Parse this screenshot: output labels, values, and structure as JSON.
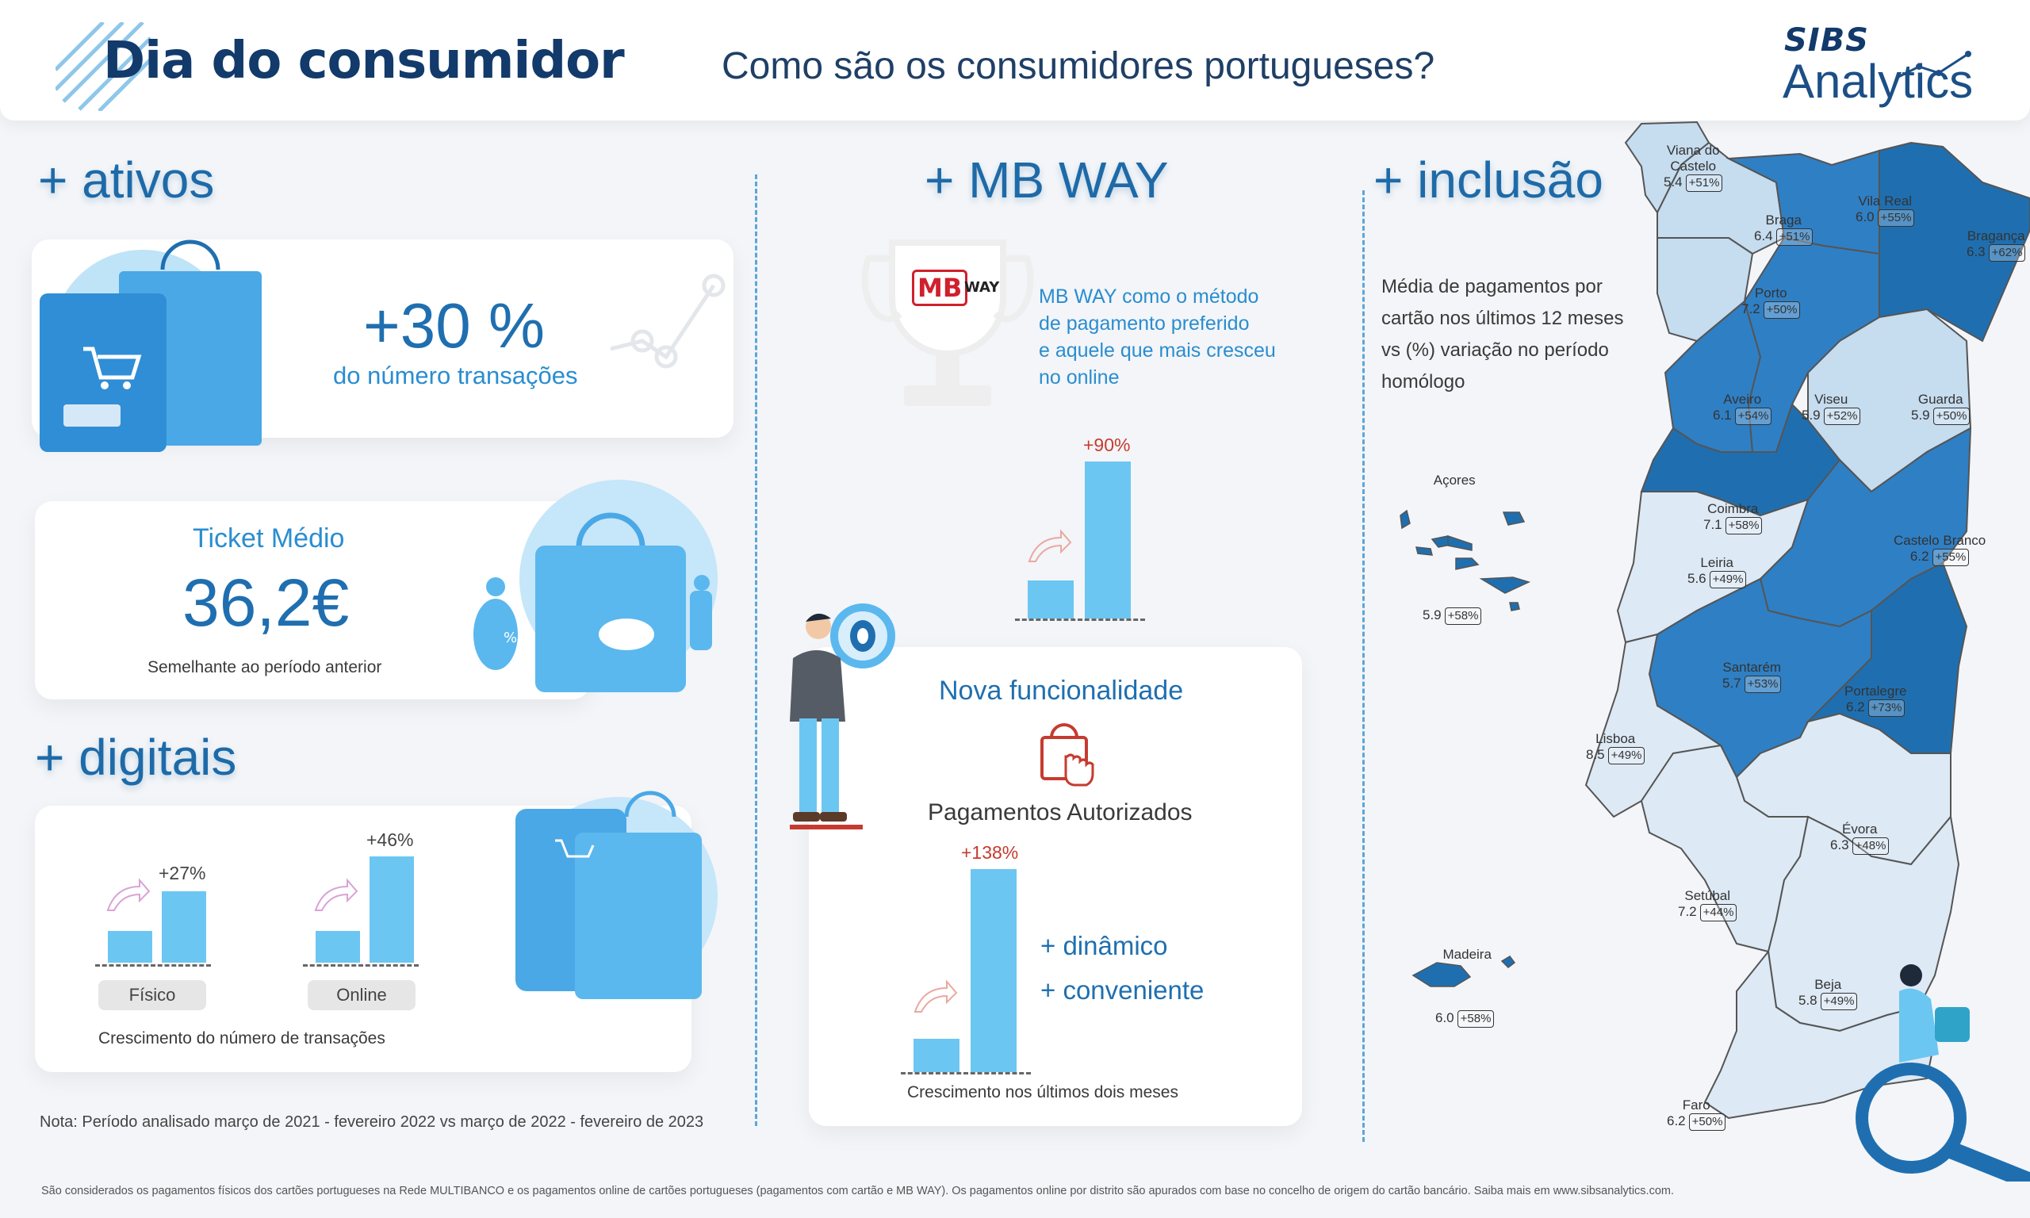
{
  "header": {
    "title": "Dia do consumidor",
    "subtitle": "Como são os consumidores portugueses?",
    "logo_brand": "SIBS",
    "logo_product": "Analytics"
  },
  "sections": {
    "ativos": "+ ativos",
    "mbway": "+ MB WAY",
    "inclusao": "+ inclusão",
    "digitais": "+ digitais"
  },
  "ativos": {
    "value": "+30 %",
    "caption": "do número transações"
  },
  "ticket": {
    "label": "Ticket Médio",
    "value": "36,2€",
    "note": "Semelhante ao período anterior"
  },
  "digitais": {
    "fisico": {
      "label": "Físico",
      "growth": "+27%",
      "growth_value": 27
    },
    "online": {
      "label": "Online",
      "growth": "+46%",
      "growth_value": 46
    },
    "caption": "Crescimento do número de transações"
  },
  "mbway": {
    "logo_mb": "MB",
    "logo_way": "WAY",
    "line1": "MB WAY como o método",
    "line2": "de pagamento preferido",
    "line3": "e aquele que mais cresceu",
    "line4": "no online",
    "growth": "+90%",
    "growth_value": 90
  },
  "nova": {
    "title": "Nova funcionalidade",
    "subtitle": "Pagamentos Autorizados",
    "growth": "+138%",
    "growth_value": 138,
    "bullet1": "+ dinâmico",
    "bullet2": "+ conveniente",
    "caption": "Crescimento nos últimos dois meses"
  },
  "inclusao": {
    "line1": "Média de pagamentos por",
    "line2": "cartão nos últimos 12 meses",
    "line3": "vs (%) variação no período",
    "line4": "homólogo"
  },
  "map": {
    "districts": [
      {
        "name": "Viana do\nCastelo",
        "value": "5.4",
        "change": "+51%"
      },
      {
        "name": "Braga",
        "value": "6.4",
        "change": "+51%"
      },
      {
        "name": "Vila Real",
        "value": "6.0",
        "change": "+55%"
      },
      {
        "name": "Bragança",
        "value": "6.3",
        "change": "+62%"
      },
      {
        "name": "Porto",
        "value": "7.2",
        "change": "+50%"
      },
      {
        "name": "Aveiro",
        "value": "6.1",
        "change": "+54%"
      },
      {
        "name": "Viseu",
        "value": "5.9",
        "change": "+52%"
      },
      {
        "name": "Guarda",
        "value": "5.9",
        "change": "+50%"
      },
      {
        "name": "Coimbra",
        "value": "7.1",
        "change": "+58%"
      },
      {
        "name": "Castelo Branco",
        "value": "6.2",
        "change": "+55%"
      },
      {
        "name": "Leiria",
        "value": "5.6",
        "change": "+49%"
      },
      {
        "name": "Santarém",
        "value": "5.7",
        "change": "+53%"
      },
      {
        "name": "Portalegre",
        "value": "6.2",
        "change": "+73%"
      },
      {
        "name": "Lisboa",
        "value": "8.5",
        "change": "+49%"
      },
      {
        "name": "Évora",
        "value": "6.3",
        "change": "+48%"
      },
      {
        "name": "Setúbal",
        "value": "7.2",
        "change": "+44%"
      },
      {
        "name": "Beja",
        "value": "5.8",
        "change": "+49%"
      },
      {
        "name": "Faro",
        "value": "6.2",
        "change": "+50%"
      },
      {
        "name": "Açores",
        "value": "5.9",
        "change": "+58%"
      },
      {
        "name": "Madeira",
        "value": "6.0",
        "change": "+58%"
      }
    ]
  },
  "note": "Nota: Período analisado março de 2021 - fevereiro 2022 vs março de 2022 - fevereiro de 2023",
  "footer": "São considerados os pagamentos físicos dos cartões portugueses na Rede MULTIBANCO  e os pagamentos online de cartões portugueses (pagamentos com cartão e MB WAY). Os pagamentos online por distrito são apurados com base no concelho de origem do cartão bancário. Saiba mais em www.sibsanalytics.com.",
  "colors": {
    "dark_blue": "#123a6b",
    "accent_blue": "#1f6fb0",
    "bar_blue": "#6cc6f2",
    "red": "#c63b2f",
    "map_dark": "#2f7fc4",
    "map_mid": "#6aa9db",
    "map_light": "#c6dcef",
    "map_pale": "#dde9f4"
  }
}
